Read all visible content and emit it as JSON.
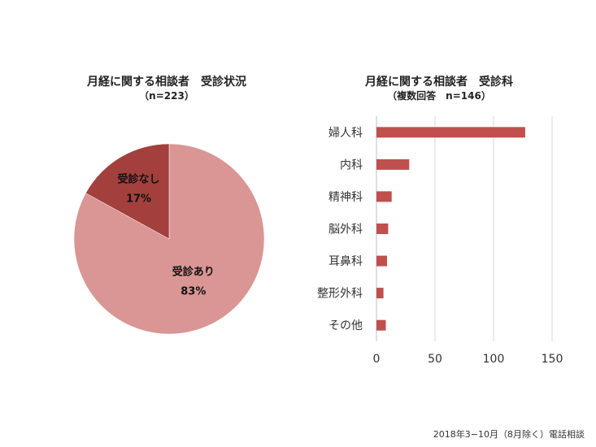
{
  "chart_data": [
    {
      "type": "pie",
      "title": "月経に関する相談者　受診状況",
      "subtitle": "（n=223）",
      "slices": [
        {
          "label": "受診あり",
          "value": 83,
          "value_label": "83%",
          "color": "#d99694"
        },
        {
          "label": "受診なし",
          "value": 17,
          "value_label": "17%",
          "color": "#a3403d"
        }
      ]
    },
    {
      "type": "bar",
      "orientation": "horizontal",
      "title": "月経に関する相談者　受診科",
      "subtitle": "（複数回答　n=146）",
      "categories": [
        "婦人科",
        "内科",
        "精神科",
        "脳外科",
        "耳鼻科",
        "整形外科",
        "その他"
      ],
      "values": [
        127,
        28,
        13,
        10,
        9,
        6,
        8
      ],
      "xlim": [
        0,
        150
      ],
      "xticks": [
        "0",
        "50",
        "100",
        "150"
      ],
      "grid": true,
      "color": "#c0504d"
    }
  ],
  "footer": "2018年3−10月（8月除く）電話相談"
}
